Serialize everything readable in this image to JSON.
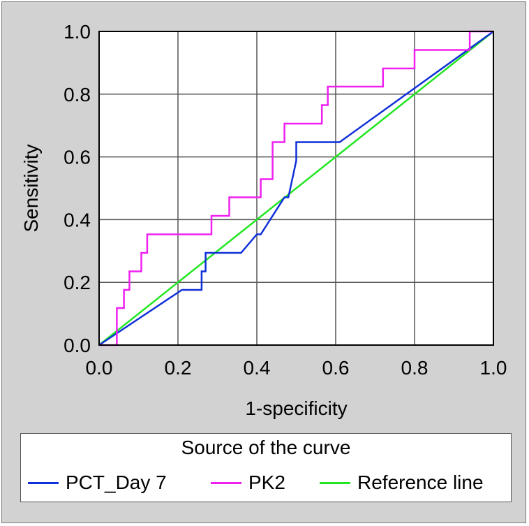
{
  "chart_data": {
    "type": "line",
    "title": "",
    "xlabel": "1-specificity",
    "ylabel": "Sensitivity",
    "xlim": [
      0,
      1
    ],
    "ylim": [
      0,
      1
    ],
    "x_ticks": [
      "0.0",
      "0.2",
      "0.4",
      "0.6",
      "0.8",
      "1.0"
    ],
    "y_ticks": [
      "0.0",
      "0.2",
      "0.4",
      "0.6",
      "0.8",
      "1.0"
    ],
    "grid": true,
    "legend_title": "Source of the curve",
    "legend_position": "bottom",
    "series": [
      {
        "name": "PCT_Day 7",
        "color": "#1030d8",
        "x": [
          0,
          0.21,
          0.26,
          0.26,
          0.27,
          0.27,
          0.36,
          0.4,
          0.4,
          0.41,
          0.47,
          0.48,
          0.5,
          0.5,
          0.61,
          1.0
        ],
        "y": [
          0,
          0.176,
          0.176,
          0.235,
          0.235,
          0.294,
          0.294,
          0.353,
          0.353,
          0.353,
          0.471,
          0.471,
          0.588,
          0.647,
          0.647,
          1.0
        ]
      },
      {
        "name": "PK2",
        "color": "#f020f0",
        "x": [
          0,
          0.045,
          0.045,
          0.063,
          0.063,
          0.077,
          0.077,
          0.107,
          0.107,
          0.122,
          0.122,
          0.285,
          0.285,
          0.33,
          0.33,
          0.41,
          0.41,
          0.44,
          0.44,
          0.47,
          0.47,
          0.565,
          0.565,
          0.58,
          0.58,
          0.72,
          0.72,
          0.8,
          0.8,
          0.94,
          0.94,
          1.0
        ],
        "y": [
          0,
          0,
          0.118,
          0.118,
          0.176,
          0.176,
          0.235,
          0.235,
          0.294,
          0.294,
          0.353,
          0.353,
          0.412,
          0.412,
          0.471,
          0.471,
          0.529,
          0.529,
          0.647,
          0.647,
          0.706,
          0.706,
          0.765,
          0.765,
          0.824,
          0.824,
          0.882,
          0.882,
          0.941,
          0.941,
          1.0,
          1.0
        ]
      },
      {
        "name": "Reference line",
        "color": "#22e622",
        "x": [
          0,
          1
        ],
        "y": [
          0,
          1
        ]
      }
    ]
  }
}
